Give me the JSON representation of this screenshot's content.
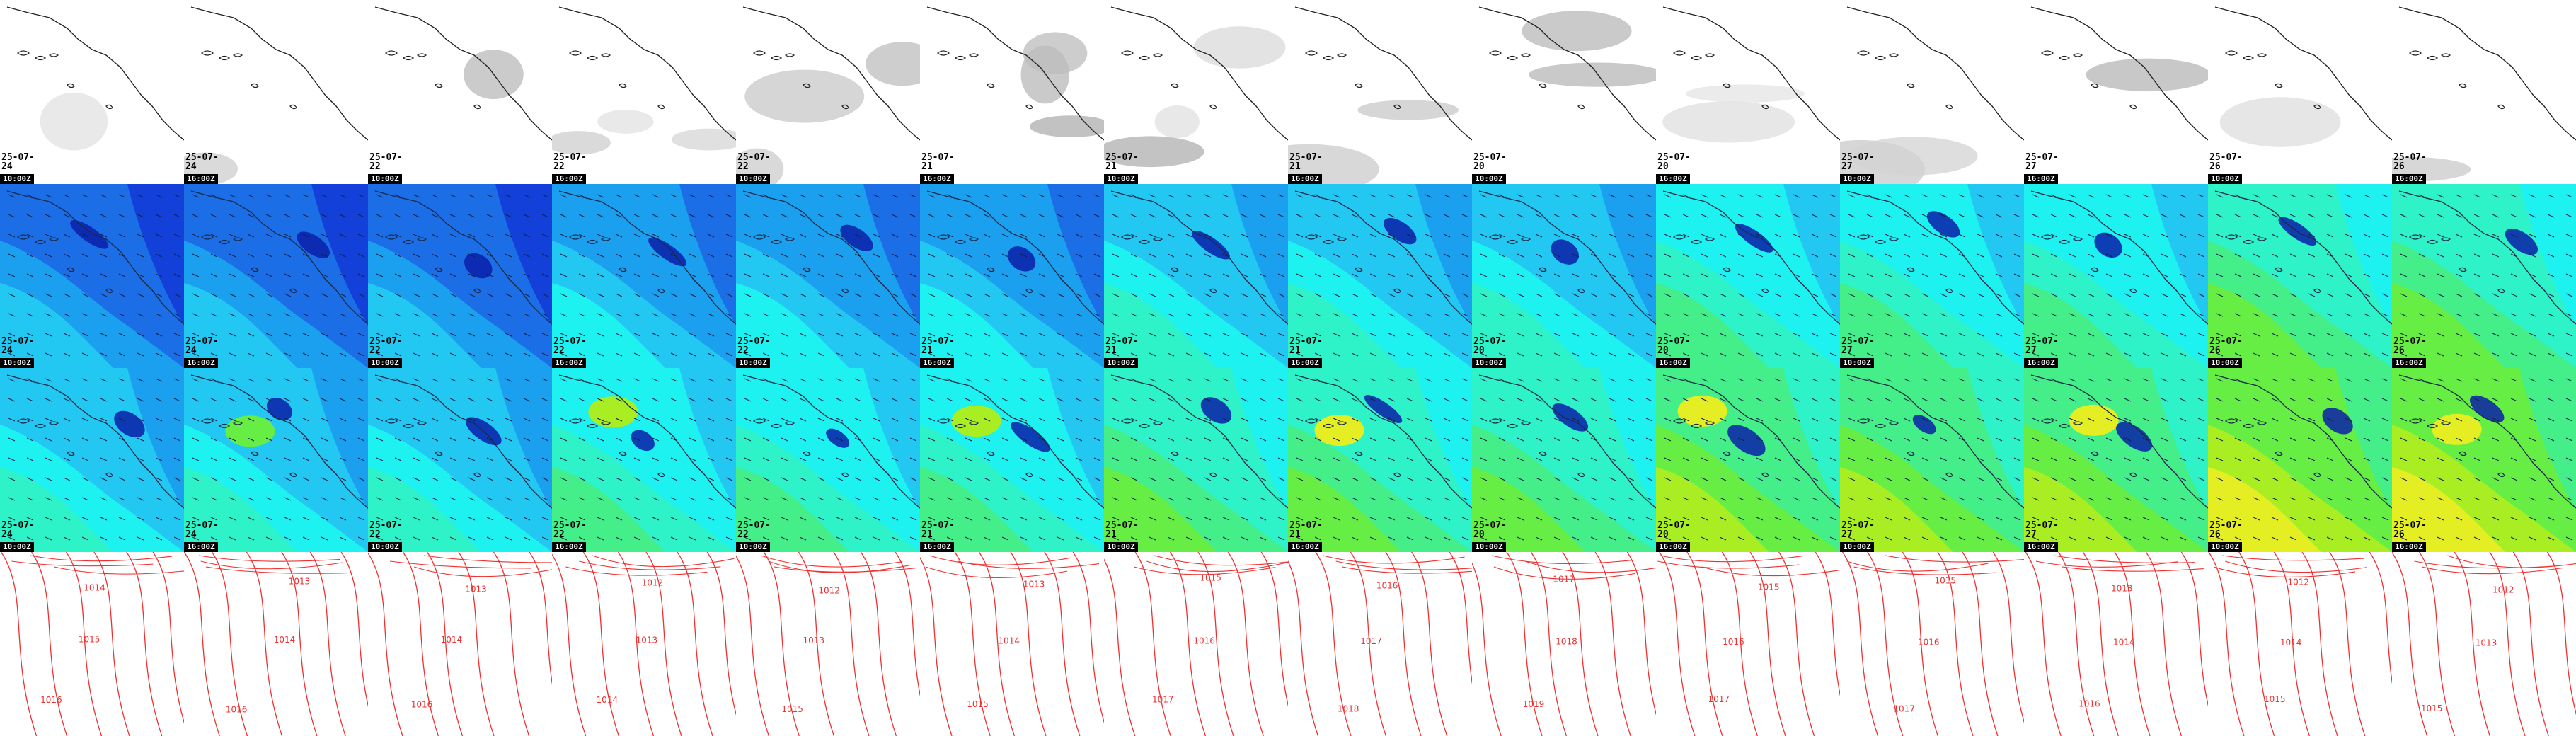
{
  "grid": {
    "columns": 14,
    "rows": [
      "cloud",
      "wind_low",
      "wind_high",
      "pressure"
    ]
  },
  "colors": {
    "coast": "#222222",
    "isobar": "#ee3030",
    "stamp_bg": "#000000",
    "stamp_fg": "#ffffff",
    "wind_palette": [
      "#0a1fa8",
      "#1340d8",
      "#1c6ee6",
      "#1aa0ee",
      "#22c8f2",
      "#1ef2f0",
      "#2ef2c8",
      "#44ee88",
      "#66ee44",
      "#a8ee22",
      "#e4ee22"
    ]
  },
  "stamps": [
    {
      "date": "25-07-24",
      "time": "10:00Z"
    },
    {
      "date": "25-07-24",
      "time": "16:00Z"
    },
    {
      "date": "25-07-22",
      "time": "10:00Z"
    },
    {
      "date": "25-07-22",
      "time": "16:00Z"
    },
    {
      "date": "25-07-22",
      "time": "10:00Z"
    },
    {
      "date": "25-07-21",
      "time": "16:00Z"
    },
    {
      "date": "25-07-21",
      "time": "10:00Z"
    },
    {
      "date": "25-07-21",
      "time": "16:00Z"
    },
    {
      "date": "25-07-20",
      "time": "10:00Z"
    },
    {
      "date": "25-07-20",
      "time": "16:00Z"
    },
    {
      "date": "25-07-27",
      "time": "10:00Z"
    },
    {
      "date": "25-07-27",
      "time": "16:00Z"
    },
    {
      "date": "25-07-26",
      "time": "10:00Z"
    },
    {
      "date": "25-07-26",
      "time": "16:00Z"
    }
  ],
  "pressure_labels": [
    [
      "1014",
      "1015",
      "1016"
    ],
    [
      "1013",
      "1014",
      "1016"
    ],
    [
      "1013",
      "1014",
      "1016"
    ],
    [
      "1012",
      "1013",
      "1014"
    ],
    [
      "1012",
      "1013",
      "1015"
    ],
    [
      "1013",
      "1014",
      "1015"
    ],
    [
      "1015",
      "1016",
      "1017"
    ],
    [
      "1016",
      "1017",
      "1018"
    ],
    [
      "1017",
      "1018",
      "1019"
    ],
    [
      "1015",
      "1016",
      "1017"
    ],
    [
      "1015",
      "1016",
      "1017"
    ],
    [
      "1013",
      "1014",
      "1016"
    ],
    [
      "1012",
      "1014",
      "1015"
    ],
    [
      "1012",
      "1013",
      "1015"
    ]
  ]
}
